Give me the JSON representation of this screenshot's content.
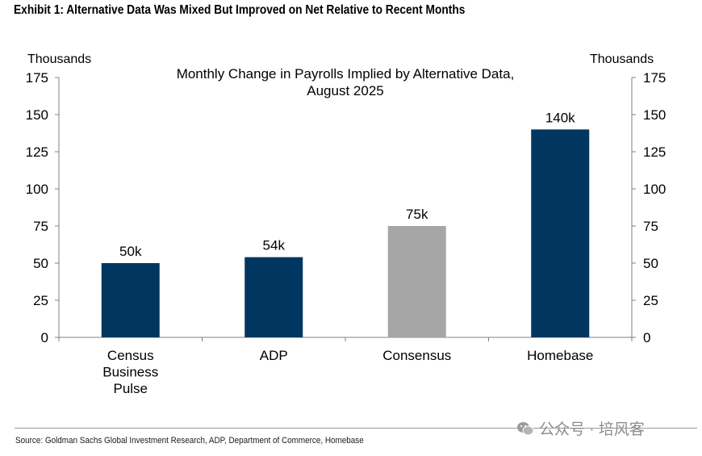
{
  "exhibit_title": "Exhibit 1: Alternative Data Was Mixed But Improved on Net Relative to Recent Months",
  "left_axis_unit": "Thousands",
  "right_axis_unit": "Thousands",
  "source": "Source: Goldman Sachs Global Investment Research, ADP, Department of Commerce, Homebase",
  "watermark": {
    "text": "公众号 · 培风客",
    "icon": "wechat-icon"
  },
  "colors": {
    "primary_bar": "#003660",
    "highlight_bar": "#a6a6a6"
  },
  "chart_data": {
    "type": "bar",
    "title_lines": [
      "Monthly Change in Payrolls Implied by Alternative Data,",
      "August 2025"
    ],
    "categories": [
      [
        "Census",
        "Business",
        "Pulse"
      ],
      [
        "ADP"
      ],
      [
        "Consensus"
      ],
      [
        "Homebase"
      ]
    ],
    "values": [
      50,
      54,
      75,
      140
    ],
    "data_labels": [
      "50k",
      "54k",
      "75k",
      "140k"
    ],
    "bar_colors": [
      "#003660",
      "#003660",
      "#a6a6a6",
      "#003660"
    ],
    "ylim": [
      0,
      175
    ],
    "yticks": [
      0,
      25,
      50,
      75,
      100,
      125,
      150,
      175
    ],
    "ylabel": "Thousands",
    "y2label": "Thousands",
    "grid": false
  }
}
